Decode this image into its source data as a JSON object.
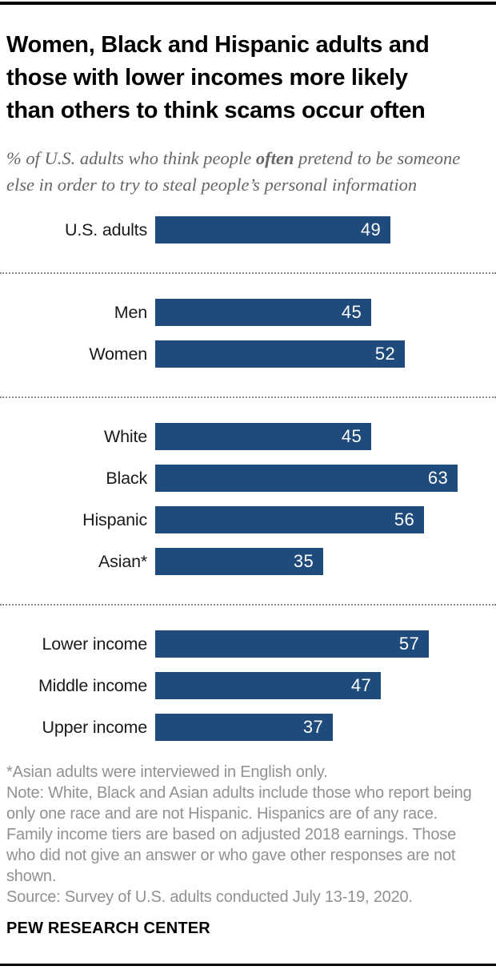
{
  "header": {
    "title_lines": [
      "Women, Black and Hispanic adults and",
      "those with lower incomes more likely",
      "than others to think scams occur often"
    ],
    "subtitle": {
      "prefix": "% of U.S. adults who think people ",
      "bold": "often",
      "suffix": " pretend to be someone else in order to try to steal people’s personal information"
    }
  },
  "chart_data": {
    "type": "bar",
    "orientation": "horizontal",
    "title": "Women, Black and Hispanic adults and those with lower incomes more likely than others to think scams occur often",
    "subtitle": "% of U.S. adults who think people often pretend to be someone else in order to try to steal people’s personal information",
    "unit": "%",
    "xlim": [
      0,
      63
    ],
    "axis_hidden": true,
    "grid": false,
    "legend": "none",
    "bar_color": "#1F4A7C",
    "value_label_color": "#FFFFFF",
    "groups": [
      {
        "name": "overall",
        "rows": [
          {
            "label": "U.S. adults",
            "value": 49
          }
        ]
      },
      {
        "name": "gender",
        "rows": [
          {
            "label": "Men",
            "value": 45
          },
          {
            "label": "Women",
            "value": 52
          }
        ]
      },
      {
        "name": "race-ethnicity",
        "rows": [
          {
            "label": "White",
            "value": 45
          },
          {
            "label": "Black",
            "value": 63
          },
          {
            "label": "Hispanic",
            "value": 56
          },
          {
            "label": "Asian*",
            "value": 35
          }
        ]
      },
      {
        "name": "income",
        "rows": [
          {
            "label": "Lower income",
            "value": 57
          },
          {
            "label": "Middle income",
            "value": 47
          },
          {
            "label": "Upper income",
            "value": 37
          }
        ]
      }
    ]
  },
  "footnotes": [
    "*Asian adults were interviewed in English only.",
    "Note: White, Black and Asian adults include those who report being only one race and are not Hispanic. Hispanics are of any race.",
    "Family income tiers are based on adjusted 2018 earnings. Those who did not give an answer or who gave other responses are not shown.",
    "Source: Survey of U.S. adults conducted July 13-19, 2020."
  ],
  "footer": {
    "brand": "PEW RESEARCH CENTER"
  }
}
